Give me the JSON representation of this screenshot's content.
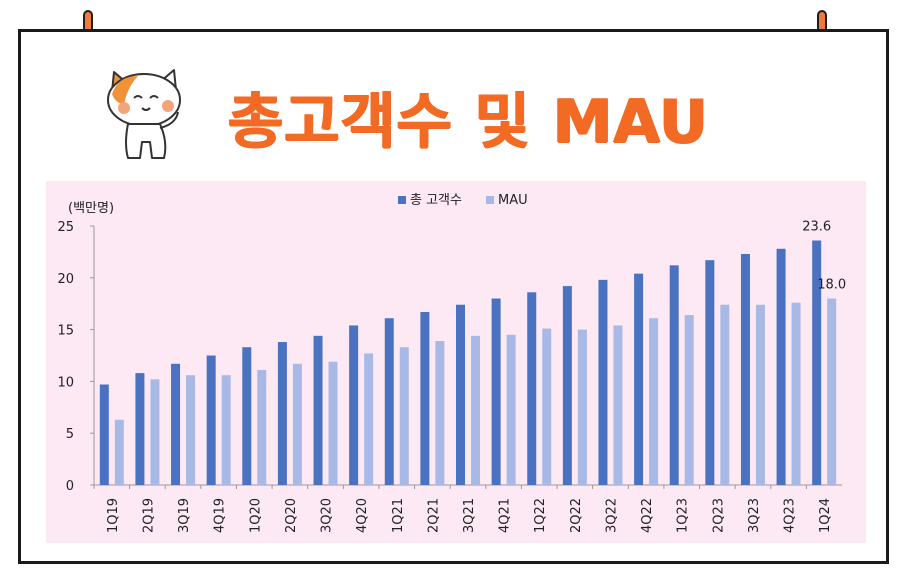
{
  "header": {
    "title": "총고객수 및 MAU"
  },
  "colors": {
    "accent": "#f26a23",
    "series_total": "#4a72c0",
    "series_mau": "#a9b9e6",
    "chart_bg": "#fde9f3"
  },
  "chart_data": {
    "type": "bar",
    "ylabel": "(백만명)",
    "ylim": [
      0,
      25
    ],
    "yticks": [
      0,
      5,
      10,
      15,
      20,
      25
    ],
    "legend_position": "top-center",
    "grid": false,
    "categories": [
      "1Q19",
      "2Q19",
      "3Q19",
      "4Q19",
      "1Q20",
      "2Q20",
      "3Q20",
      "4Q20",
      "1Q21",
      "2Q21",
      "3Q21",
      "4Q21",
      "1Q22",
      "2Q22",
      "3Q22",
      "4Q22",
      "1Q23",
      "2Q23",
      "3Q23",
      "4Q23",
      "1Q24"
    ],
    "series": [
      {
        "name": "총 고객수",
        "color": "#4a72c0",
        "values": [
          9.7,
          10.8,
          11.7,
          12.5,
          13.3,
          13.8,
          14.4,
          15.4,
          16.1,
          16.7,
          17.4,
          18.0,
          18.6,
          19.2,
          19.8,
          20.4,
          21.2,
          21.7,
          22.3,
          22.8,
          23.6
        ]
      },
      {
        "name": "MAU",
        "color": "#a9b9e6",
        "values": [
          6.3,
          10.2,
          10.6,
          10.6,
          11.1,
          11.7,
          11.9,
          12.7,
          13.3,
          13.9,
          14.4,
          14.5,
          15.1,
          15.0,
          15.4,
          16.1,
          16.4,
          17.4,
          17.4,
          17.6,
          18.0
        ]
      }
    ],
    "data_labels": [
      {
        "series": 0,
        "index": 20,
        "text": "23.6"
      },
      {
        "series": 1,
        "index": 20,
        "text": "18.0"
      }
    ]
  }
}
